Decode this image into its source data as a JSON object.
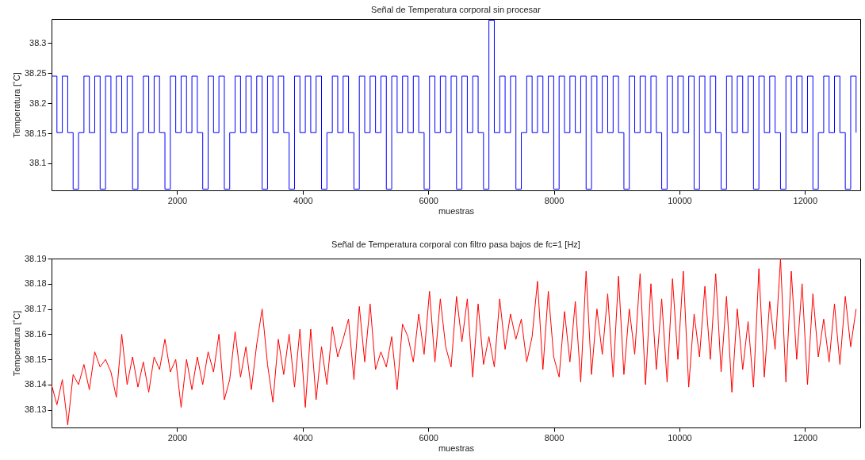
{
  "chart_data": [
    {
      "type": "step",
      "title": "Señal de Temperatura corporal sin procesar",
      "xlabel": "muestras",
      "ylabel": "Temperatura [˚C]",
      "xlim": [
        0,
        12880
      ],
      "ylim": [
        38.055,
        38.34
      ],
      "xticks": [
        2000,
        4000,
        6000,
        8000,
        10000,
        12000
      ],
      "yticks": [
        38.1,
        38.15,
        38.2,
        38.25,
        38.3
      ],
      "x": [
        0,
        86,
        172,
        258,
        344,
        430,
        516,
        602,
        688,
        774,
        860,
        946,
        1032,
        1118,
        1204,
        1290,
        1376,
        1462,
        1548,
        1634,
        1720,
        1806,
        1892,
        1978,
        2064,
        2150,
        2236,
        2322,
        2408,
        2494,
        2580,
        2666,
        2752,
        2838,
        2924,
        3010,
        3096,
        3182,
        3268,
        3354,
        3440,
        3526,
        3612,
        3698,
        3784,
        3870,
        3956,
        4042,
        4128,
        4214,
        4300,
        4386,
        4472,
        4558,
        4644,
        4730,
        4816,
        4902,
        4988,
        5074,
        5160,
        5246,
        5332,
        5418,
        5504,
        5590,
        5676,
        5762,
        5848,
        5934,
        6020,
        6106,
        6192,
        6278,
        6364,
        6450,
        6536,
        6622,
        6708,
        6794,
        6880,
        6966,
        7052,
        7138,
        7224,
        7310,
        7396,
        7482,
        7568,
        7654,
        7740,
        7826,
        7912,
        7998,
        8084,
        8170,
        8256,
        8342,
        8428,
        8514,
        8600,
        8686,
        8772,
        8858,
        8944,
        9030,
        9116,
        9202,
        9288,
        9374,
        9460,
        9546,
        9632,
        9718,
        9804,
        9890,
        9976,
        10062,
        10148,
        10234,
        10320,
        10406,
        10492,
        10578,
        10664,
        10750,
        10836,
        10922,
        11008,
        11094,
        11180,
        11266,
        11352,
        11438,
        11524,
        11610,
        11696,
        11782,
        11868,
        11954,
        12040,
        12126,
        12212,
        12298,
        12384,
        12470,
        12556,
        12642,
        12728,
        12814
      ],
      "series": [
        {
          "color": "#0000ff",
          "values": [
            38.245,
            38.151,
            38.245,
            38.151,
            38.057,
            38.151,
            38.245,
            38.151,
            38.245,
            38.057,
            38.245,
            38.151,
            38.245,
            38.151,
            38.245,
            38.057,
            38.151,
            38.245,
            38.151,
            38.245,
            38.151,
            38.057,
            38.245,
            38.151,
            38.245,
            38.151,
            38.245,
            38.151,
            38.057,
            38.245,
            38.151,
            38.245,
            38.057,
            38.151,
            38.245,
            38.151,
            38.245,
            38.151,
            38.245,
            38.057,
            38.245,
            38.151,
            38.245,
            38.151,
            38.057,
            38.245,
            38.151,
            38.245,
            38.151,
            38.245,
            38.057,
            38.151,
            38.245,
            38.151,
            38.245,
            38.151,
            38.057,
            38.245,
            38.151,
            38.245,
            38.151,
            38.245,
            38.057,
            38.245,
            38.151,
            38.245,
            38.151,
            38.245,
            38.151,
            38.057,
            38.245,
            38.151,
            38.245,
            38.151,
            38.245,
            38.057,
            38.245,
            38.151,
            38.245,
            38.151,
            38.057,
            38.338,
            38.151,
            38.245,
            38.151,
            38.245,
            38.057,
            38.151,
            38.245,
            38.151,
            38.245,
            38.151,
            38.245,
            38.057,
            38.245,
            38.151,
            38.245,
            38.151,
            38.245,
            38.057,
            38.245,
            38.151,
            38.245,
            38.151,
            38.245,
            38.151,
            38.057,
            38.245,
            38.151,
            38.245,
            38.151,
            38.245,
            38.151,
            38.057,
            38.245,
            38.151,
            38.245,
            38.151,
            38.245,
            38.057,
            38.245,
            38.151,
            38.245,
            38.151,
            38.057,
            38.245,
            38.151,
            38.245,
            38.151,
            38.245,
            38.057,
            38.245,
            38.151,
            38.245,
            38.151,
            38.057,
            38.245,
            38.151,
            38.245,
            38.151,
            38.245,
            38.057,
            38.151,
            38.245,
            38.151,
            38.245,
            38.151,
            38.057,
            38.245,
            38.151
          ]
        }
      ]
    },
    {
      "type": "line",
      "title": "Señal de Temperatura corporal con filtro pasa bajos de fc=1 [Hz]",
      "xlabel": "muestras",
      "ylabel": "Temperatura [˚C]",
      "xlim": [
        0,
        12880
      ],
      "ylim": [
        38.123,
        38.19
      ],
      "xticks": [
        2000,
        4000,
        6000,
        8000,
        10000,
        12000
      ],
      "yticks": [
        38.13,
        38.14,
        38.15,
        38.16,
        38.17,
        38.18,
        38.19
      ],
      "x": [
        0,
        86,
        172,
        258,
        344,
        430,
        516,
        602,
        688,
        774,
        860,
        946,
        1032,
        1118,
        1204,
        1290,
        1376,
        1462,
        1548,
        1634,
        1720,
        1806,
        1892,
        1978,
        2064,
        2150,
        2236,
        2322,
        2408,
        2494,
        2580,
        2666,
        2752,
        2838,
        2924,
        3010,
        3096,
        3182,
        3268,
        3354,
        3440,
        3526,
        3612,
        3698,
        3784,
        3870,
        3956,
        4042,
        4128,
        4214,
        4300,
        4386,
        4472,
        4558,
        4644,
        4730,
        4816,
        4902,
        4988,
        5074,
        5160,
        5246,
        5332,
        5418,
        5504,
        5590,
        5676,
        5762,
        5848,
        5934,
        6020,
        6106,
        6192,
        6278,
        6364,
        6450,
        6536,
        6622,
        6708,
        6794,
        6880,
        6966,
        7052,
        7138,
        7224,
        7310,
        7396,
        7482,
        7568,
        7654,
        7740,
        7826,
        7912,
        7998,
        8084,
        8170,
        8256,
        8342,
        8428,
        8514,
        8600,
        8686,
        8772,
        8858,
        8944,
        9030,
        9116,
        9202,
        9288,
        9374,
        9460,
        9546,
        9632,
        9718,
        9804,
        9890,
        9976,
        10062,
        10148,
        10234,
        10320,
        10406,
        10492,
        10578,
        10664,
        10750,
        10836,
        10922,
        11008,
        11094,
        11180,
        11266,
        11352,
        11438,
        11524,
        11610,
        11696,
        11782,
        11868,
        11954,
        12040,
        12126,
        12212,
        12298,
        12384,
        12470,
        12556,
        12642,
        12728,
        12814
      ],
      "series": [
        {
          "color": "#ff0000",
          "values": [
            38.14,
            38.132,
            38.142,
            38.124,
            38.144,
            38.14,
            38.148,
            38.138,
            38.153,
            38.147,
            38.15,
            38.145,
            38.135,
            38.16,
            38.14,
            38.151,
            38.139,
            38.149,
            38.137,
            38.151,
            38.146,
            38.158,
            38.145,
            38.15,
            38.131,
            38.15,
            38.138,
            38.151,
            38.14,
            38.153,
            38.145,
            38.16,
            38.134,
            38.142,
            38.161,
            38.143,
            38.155,
            38.138,
            38.156,
            38.17,
            38.148,
            38.133,
            38.158,
            38.144,
            38.16,
            38.139,
            38.162,
            38.131,
            38.162,
            38.134,
            38.155,
            38.14,
            38.163,
            38.151,
            38.158,
            38.166,
            38.142,
            38.171,
            38.149,
            38.172,
            38.146,
            38.153,
            38.147,
            38.159,
            38.138,
            38.164,
            38.159,
            38.149,
            38.168,
            38.152,
            38.177,
            38.149,
            38.174,
            38.155,
            38.147,
            38.175,
            38.157,
            38.174,
            38.143,
            38.172,
            38.148,
            38.159,
            38.147,
            38.174,
            38.154,
            38.168,
            38.158,
            38.166,
            38.149,
            38.159,
            38.181,
            38.146,
            38.177,
            38.151,
            38.143,
            38.169,
            38.149,
            38.173,
            38.141,
            38.185,
            38.144,
            38.17,
            38.152,
            38.176,
            38.143,
            38.183,
            38.144,
            38.17,
            38.152,
            38.184,
            38.14,
            38.18,
            38.146,
            38.174,
            38.141,
            38.182,
            38.15,
            38.185,
            38.139,
            38.168,
            38.151,
            38.179,
            38.15,
            38.184,
            38.145,
            38.175,
            38.137,
            38.17,
            38.146,
            38.165,
            38.139,
            38.186,
            38.143,
            38.173,
            38.154,
            38.19,
            38.141,
            38.185,
            38.15,
            38.18,
            38.14,
            38.176,
            38.151,
            38.166,
            38.149,
            38.172,
            38.148,
            38.175,
            38.155,
            38.17
          ]
        }
      ]
    }
  ]
}
